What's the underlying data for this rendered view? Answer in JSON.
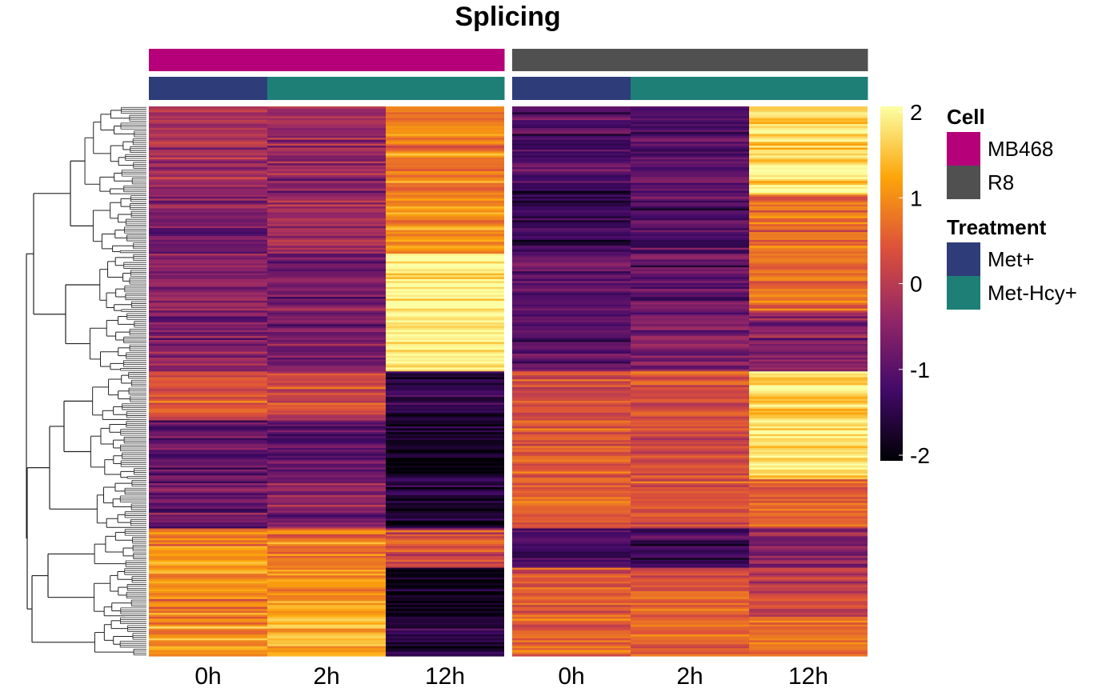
{
  "chart_data": {
    "type": "heatmap",
    "title": "Splicing",
    "columns": [
      {
        "label": "0h",
        "cell": "MB468",
        "treatment": "Met+"
      },
      {
        "label": "2h",
        "cell": "MB468",
        "treatment": "Met-Hcy+"
      },
      {
        "label": "12h",
        "cell": "MB468",
        "treatment": "Met-Hcy+"
      },
      {
        "label": "0h",
        "cell": "R8",
        "treatment": "Met+"
      },
      {
        "label": "2h",
        "cell": "R8",
        "treatment": "Met-Hcy+"
      },
      {
        "label": "12h",
        "cell": "R8",
        "treatment": "Met-Hcy+"
      }
    ],
    "column_split": [
      "MB468",
      "R8"
    ],
    "row_clusters": [
      {
        "rows": 45,
        "values": [
          -0.2,
          -0.4,
          0.8,
          -1.1,
          -1.0,
          1.7
        ]
      },
      {
        "rows": 30,
        "values": [
          -0.7,
          -0.3,
          1.0,
          -1.2,
          -1.1,
          0.7
        ]
      },
      {
        "rows": 30,
        "values": [
          -0.4,
          -0.7,
          1.9,
          -0.8,
          -0.9,
          0.6
        ]
      },
      {
        "rows": 30,
        "values": [
          -0.5,
          -0.8,
          1.9,
          -0.9,
          -0.7,
          -0.6
        ]
      },
      {
        "rows": 25,
        "values": [
          0.3,
          0.2,
          -1.5,
          0.2,
          0.3,
          1.6
        ]
      },
      {
        "rows": 30,
        "values": [
          -0.9,
          -1.0,
          -1.7,
          0.5,
          0.3,
          1.7
        ]
      },
      {
        "rows": 25,
        "values": [
          -0.8,
          -0.6,
          -1.6,
          0.6,
          0.4,
          0.5
        ]
      },
      {
        "rows": 20,
        "values": [
          0.8,
          0.9,
          0.3,
          -1.1,
          -1.2,
          -0.6
        ]
      },
      {
        "rows": 25,
        "values": [
          0.9,
          1.1,
          -1.8,
          0.4,
          0.5,
          0.2
        ]
      },
      {
        "rows": 20,
        "values": [
          1.0,
          1.3,
          -1.5,
          0.6,
          0.5,
          0.7
        ]
      }
    ],
    "color_scale": {
      "min": -2,
      "max": 2,
      "ticks": [
        "2",
        "1",
        "0",
        "-1",
        "-2"
      ],
      "colors": [
        "#000004",
        "#420a68",
        "#932667",
        "#dd513a",
        "#fca50a",
        "#fcffa4"
      ]
    },
    "dendrogram": "rows",
    "legends": [
      {
        "title": "Cell",
        "items": [
          {
            "label": "MB468",
            "color": "#b5007a"
          },
          {
            "label": "R8",
            "color": "#505050"
          }
        ]
      },
      {
        "title": "Treatment",
        "items": [
          {
            "label": "Met+",
            "color": "#2e3d7a"
          },
          {
            "label": "Met-Hcy+",
            "color": "#1e7f77"
          }
        ]
      }
    ]
  }
}
